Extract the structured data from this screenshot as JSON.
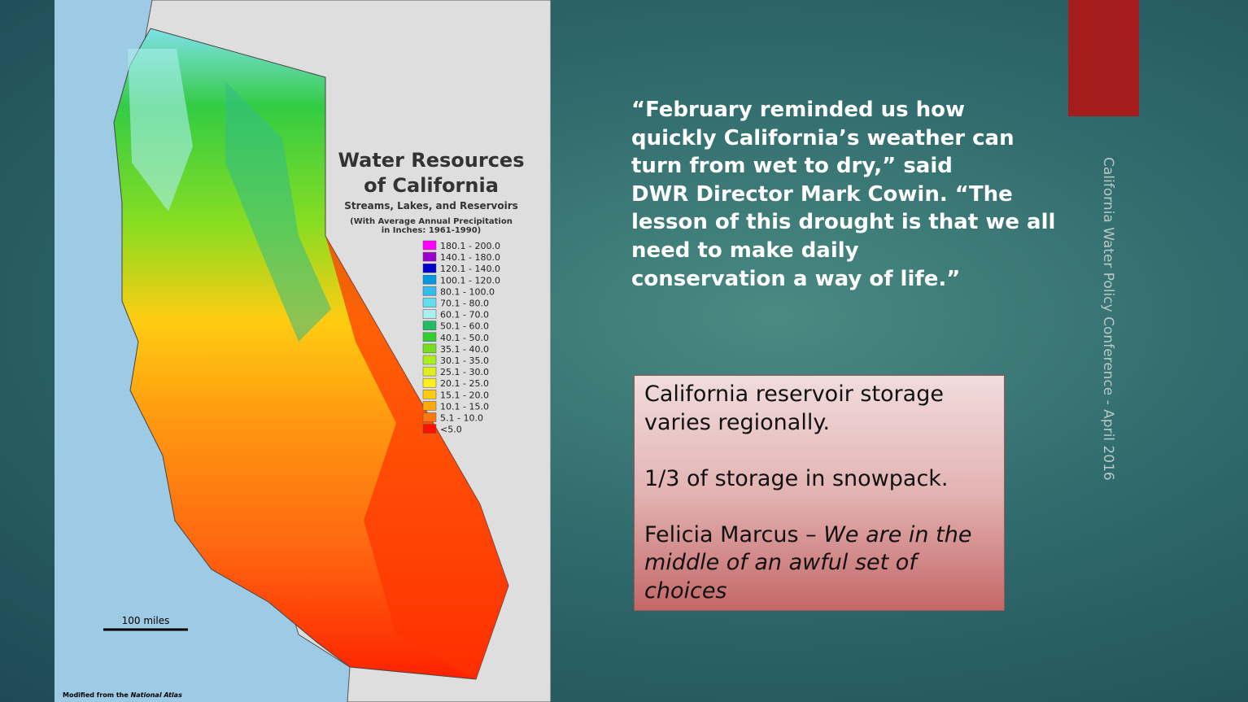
{
  "map": {
    "title_lines": [
      "Water Resources",
      "of California"
    ],
    "subtitle": "Streams, Lakes, and Reservoirs",
    "note_lines": [
      "(With Average Annual Precipitation",
      "in Inches: 1961-1990)"
    ],
    "legend": [
      {
        "label": "180.1 - 200.0",
        "color": "#ff00ff"
      },
      {
        "label": "140.1 - 180.0",
        "color": "#9900cc"
      },
      {
        "label": "120.1 - 140.0",
        "color": "#0000cc"
      },
      {
        "label": "100.1 - 120.0",
        "color": "#0099dd"
      },
      {
        "label": "80.1 - 100.0",
        "color": "#33bbee"
      },
      {
        "label": "70.1 - 80.0",
        "color": "#66ddee"
      },
      {
        "label": "60.1 - 70.0",
        "color": "#aaeeee"
      },
      {
        "label": "50.1 - 60.0",
        "color": "#22bb66"
      },
      {
        "label": "40.1 - 50.0",
        "color": "#33cc33"
      },
      {
        "label": "35.1 - 40.0",
        "color": "#77dd22"
      },
      {
        "label": "30.1 - 35.0",
        "color": "#aaee22"
      },
      {
        "label": "25.1 - 30.0",
        "color": "#ddee22"
      },
      {
        "label": "20.1 - 25.0",
        "color": "#ffee22"
      },
      {
        "label": "15.1 - 20.0",
        "color": "#ffcc11"
      },
      {
        "label": "10.1 - 15.0",
        "color": "#ffaa11"
      },
      {
        "label": "5.1 - 10.0",
        "color": "#ff7711"
      },
      {
        "label": "<5.0",
        "color": "#ff1100"
      }
    ],
    "scale_label": "100 miles",
    "credit": {
      "text": "Modified from the ",
      "italic": "National Atlas"
    }
  },
  "quote": {
    "lines": [
      "“February reminded us how",
      "quickly California’s weather can",
      "turn from wet to dry,” said",
      "DWR Director Mark Cowin. “The",
      "lesson of this drought is that we all",
      "need to make daily",
      "conservation a way of life.”"
    ]
  },
  "box": {
    "paragraphs": [
      "California reservoir storage varies regionally.",
      "1/3 of storage in snowpack."
    ],
    "attribution": {
      "text": "Felicia Marcus – ",
      "italic": "We are in the middle of an awful set of choices"
    }
  },
  "sidebar": "California Water Policy Conference - April 2016"
}
